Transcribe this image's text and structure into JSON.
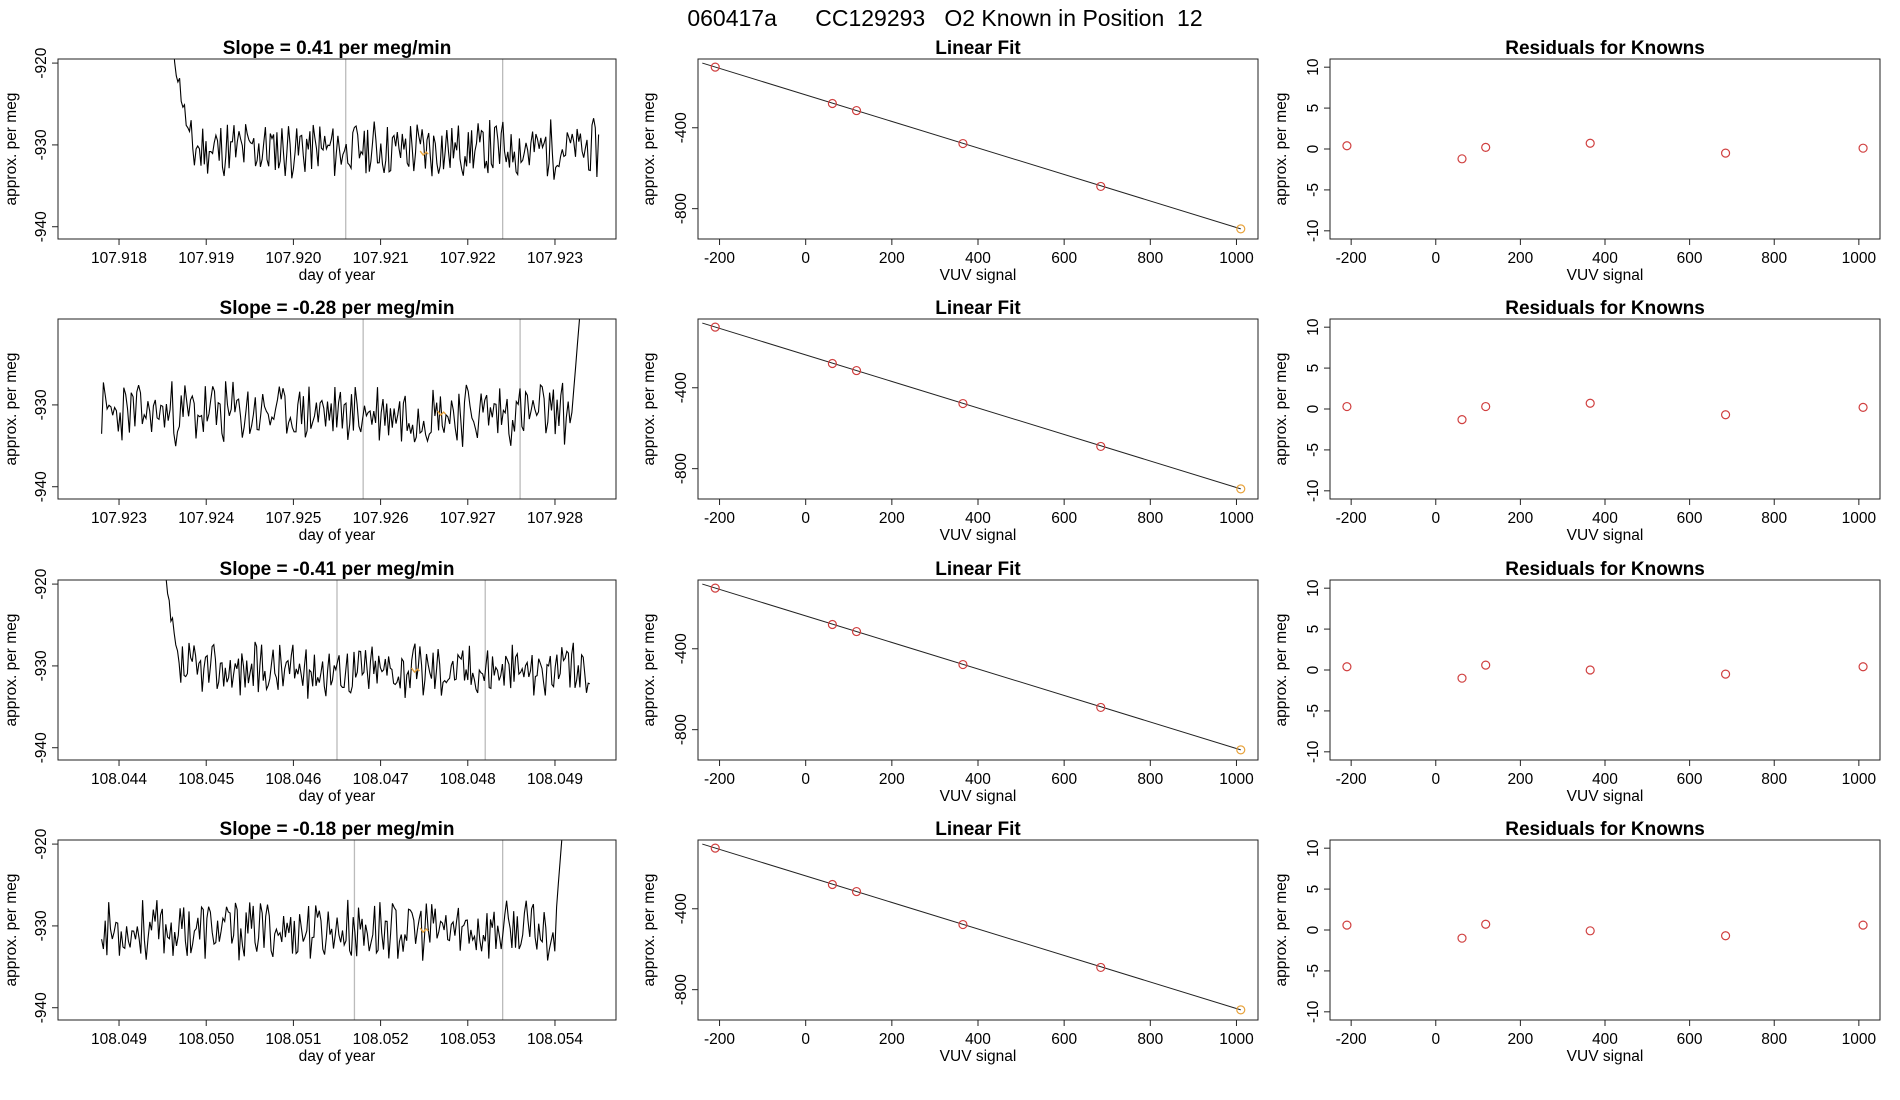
{
  "page_title": "060417a      CC129293   O2 Known in Position  12",
  "chart_data": [
    {
      "type": "line",
      "title": "Slope =  0.41  per meg/min",
      "xlabel": "day of year",
      "ylabel": "approx. per meg",
      "xlim": [
        107.9173,
        107.9237
      ],
      "ylim": [
        -941.5,
        -919.5
      ],
      "xticks": [
        107.918,
        107.919,
        107.92,
        107.921,
        107.922,
        107.923
      ],
      "xtick_labels": [
        "107.918",
        "107.919",
        "107.920",
        "107.921",
        "107.922",
        "107.923"
      ],
      "yticks": [
        -920,
        -930,
        -940
      ],
      "ytick_labels": [
        "-920",
        "-930",
        "-940"
      ],
      "vlines": [
        107.9206,
        107.9224
      ],
      "series_start": 107.9186,
      "series_end": 107.9235,
      "start_value": -917,
      "settle_index": 12,
      "settled_mean": -930.5,
      "settled_amp": 3.0,
      "seed": 11,
      "highlight": {
        "x": 107.9215,
        "y": -931,
        "color": "#e8a33d"
      },
      "line_color": "#000000",
      "vline_color": "#bbbbbb"
    },
    {
      "type": "scatter",
      "title": "Linear Fit",
      "xlabel": "VUV signal",
      "ylabel": "approx. per meg",
      "xlim": [
        -250,
        1050
      ],
      "ylim": [
        -950,
        -60
      ],
      "xticks": [
        -200,
        0,
        200,
        400,
        600,
        800,
        1000
      ],
      "xtick_labels": [
        "-200",
        "0",
        "200",
        "400",
        "600",
        "800",
        "1000"
      ],
      "yticks": [
        -400,
        -800
      ],
      "ytick_labels": [
        "-400",
        "-800"
      ],
      "x": [
        -210,
        62,
        118,
        365,
        685,
        1010
      ],
      "y": [
        -100,
        -280,
        -315,
        -478,
        -690,
        -900
      ],
      "point_colors": [
        "#d04040",
        "#d04040",
        "#d04040",
        "#d04040",
        "#d04040",
        "#e8a33d"
      ],
      "fit_line": {
        "x": [
          -240,
          1010
        ],
        "y": [
          -80,
          -900
        ]
      }
    },
    {
      "type": "scatter",
      "title": "Residuals for Knowns",
      "xlabel": "VUV signal",
      "ylabel": "approx. per meg",
      "xlim": [
        -250,
        1050
      ],
      "ylim": [
        -11,
        11
      ],
      "xticks": [
        -200,
        0,
        200,
        400,
        600,
        800,
        1000
      ],
      "xtick_labels": [
        "-200",
        "0",
        "200",
        "400",
        "600",
        "800",
        "1000"
      ],
      "yticks": [
        10,
        5,
        0,
        -5,
        -10
      ],
      "ytick_labels": [
        "10",
        "5",
        "0",
        "-5",
        "-10"
      ],
      "x": [
        -210,
        62,
        118,
        365,
        685,
        1010
      ],
      "y": [
        0.4,
        -1.2,
        0.2,
        0.7,
        -0.5,
        0.1
      ],
      "point_color": "#d04040"
    },
    {
      "type": "line",
      "title": "Slope =  -0.28  per meg/min",
      "xlabel": "day of year",
      "ylabel": "approx. per meg",
      "xlim": [
        107.9223,
        107.9287
      ],
      "ylim": [
        -941.5,
        -919.5
      ],
      "xticks": [
        107.923,
        107.924,
        107.925,
        107.926,
        107.927,
        107.928
      ],
      "xtick_labels": [
        "107.923",
        "107.924",
        "107.925",
        "107.926",
        "107.927",
        "107.928"
      ],
      "yticks": [
        -930,
        -940
      ],
      "ytick_labels": [
        "-930",
        "-940"
      ],
      "vlines": [
        107.9258,
        107.9276
      ],
      "series_start": 107.9228,
      "series_end": 107.9283,
      "start_value": -932,
      "settle_index": 0,
      "settled_mean": -931,
      "settled_amp": 3.4,
      "seed": 23,
      "end_rise": true,
      "highlight": {
        "x": 107.9267,
        "y": -931,
        "color": "#e8a33d"
      },
      "line_color": "#000000",
      "vline_color": "#bbbbbb"
    },
    {
      "type": "scatter",
      "title": "Linear Fit",
      "xlabel": "VUV signal",
      "ylabel": "approx. per meg",
      "xlim": [
        -250,
        1050
      ],
      "ylim": [
        -950,
        -60
      ],
      "xticks": [
        -200,
        0,
        200,
        400,
        600,
        800,
        1000
      ],
      "xtick_labels": [
        "-200",
        "0",
        "200",
        "400",
        "600",
        "800",
        "1000"
      ],
      "yticks": [
        -400,
        -800
      ],
      "ytick_labels": [
        "-400",
        "-800"
      ],
      "x": [
        -210,
        62,
        118,
        365,
        685,
        1010
      ],
      "y": [
        -100,
        -280,
        -315,
        -478,
        -690,
        -900
      ],
      "point_colors": [
        "#d04040",
        "#d04040",
        "#d04040",
        "#d04040",
        "#d04040",
        "#e8a33d"
      ],
      "fit_line": {
        "x": [
          -240,
          1010
        ],
        "y": [
          -80,
          -900
        ]
      }
    },
    {
      "type": "scatter",
      "title": "Residuals for Knowns",
      "xlabel": "VUV signal",
      "ylabel": "approx. per meg",
      "xlim": [
        -250,
        1050
      ],
      "ylim": [
        -11,
        11
      ],
      "xticks": [
        -200,
        0,
        200,
        400,
        600,
        800,
        1000
      ],
      "xtick_labels": [
        "-200",
        "0",
        "200",
        "400",
        "600",
        "800",
        "1000"
      ],
      "yticks": [
        10,
        5,
        0,
        -5,
        -10
      ],
      "ytick_labels": [
        "10",
        "5",
        "0",
        "-5",
        "-10"
      ],
      "x": [
        -210,
        62,
        118,
        365,
        685,
        1010
      ],
      "y": [
        0.3,
        -1.3,
        0.3,
        0.7,
        -0.7,
        0.2
      ],
      "point_color": "#d04040"
    },
    {
      "type": "line",
      "title": "Slope =  -0.41  per meg/min",
      "xlabel": "day of year",
      "ylabel": "approx. per meg",
      "xlim": [
        108.0433,
        108.0497
      ],
      "ylim": [
        -941.5,
        -919.5
      ],
      "xticks": [
        108.044,
        108.045,
        108.046,
        108.047,
        108.048,
        108.049
      ],
      "xtick_labels": [
        "108.044",
        "108.045",
        "108.046",
        "108.047",
        "108.048",
        "108.049"
      ],
      "yticks": [
        -920,
        -930,
        -940
      ],
      "ytick_labels": [
        "-920",
        "-930",
        "-940"
      ],
      "vlines": [
        108.0465,
        108.0482
      ],
      "series_start": 108.0445,
      "series_end": 108.0494,
      "start_value": -918,
      "settle_index": 10,
      "settled_mean": -930.5,
      "settled_amp": 2.8,
      "seed": 37,
      "highlight": {
        "x": 108.0474,
        "y": -930.5,
        "color": "#e8a33d"
      },
      "line_color": "#000000",
      "vline_color": "#bbbbbb"
    },
    {
      "type": "scatter",
      "title": "Linear Fit",
      "xlabel": "VUV signal",
      "ylabel": "approx. per meg",
      "xlim": [
        -250,
        1050
      ],
      "ylim": [
        -950,
        -60
      ],
      "xticks": [
        -200,
        0,
        200,
        400,
        600,
        800,
        1000
      ],
      "xtick_labels": [
        "-200",
        "0",
        "200",
        "400",
        "600",
        "800",
        "1000"
      ],
      "yticks": [
        -400,
        -800
      ],
      "ytick_labels": [
        "-400",
        "-800"
      ],
      "x": [
        -210,
        62,
        118,
        365,
        685,
        1010
      ],
      "y": [
        -100,
        -280,
        -315,
        -478,
        -690,
        -900
      ],
      "point_colors": [
        "#d04040",
        "#d04040",
        "#d04040",
        "#d04040",
        "#d04040",
        "#e8a33d"
      ],
      "fit_line": {
        "x": [
          -240,
          1010
        ],
        "y": [
          -80,
          -900
        ]
      }
    },
    {
      "type": "scatter",
      "title": "Residuals for Knowns",
      "xlabel": "VUV signal",
      "ylabel": "approx. per meg",
      "xlim": [
        -250,
        1050
      ],
      "ylim": [
        -11,
        11
      ],
      "xticks": [
        -200,
        0,
        200,
        400,
        600,
        800,
        1000
      ],
      "xtick_labels": [
        "-200",
        "0",
        "200",
        "400",
        "600",
        "800",
        "1000"
      ],
      "yticks": [
        10,
        5,
        0,
        -5,
        -10
      ],
      "ytick_labels": [
        "10",
        "5",
        "0",
        "-5",
        "-10"
      ],
      "x": [
        -210,
        62,
        118,
        365,
        685,
        1010
      ],
      "y": [
        0.4,
        -1.0,
        0.6,
        0.0,
        -0.5,
        0.4
      ],
      "point_color": "#d04040"
    },
    {
      "type": "line",
      "title": "Slope =  -0.18  per meg/min",
      "xlabel": "day of year",
      "ylabel": "approx. per meg",
      "xlim": [
        108.0483,
        108.0547
      ],
      "ylim": [
        -941.5,
        -919.5
      ],
      "xticks": [
        108.049,
        108.05,
        108.051,
        108.052,
        108.053,
        108.054
      ],
      "xtick_labels": [
        "108.049",
        "108.050",
        "108.051",
        "108.052",
        "108.053",
        "108.054"
      ],
      "yticks": [
        -920,
        -930,
        -940
      ],
      "ytick_labels": [
        "-920",
        "-930",
        "-940"
      ],
      "vlines": [
        108.0517,
        108.0534
      ],
      "series_start": 108.0488,
      "series_end": 108.0541,
      "start_value": -930,
      "settle_index": 0,
      "settled_mean": -930.5,
      "settled_amp": 3.2,
      "seed": 53,
      "end_rise": true,
      "highlight": {
        "x": 108.0525,
        "y": -930.5,
        "color": "#e8a33d"
      },
      "line_color": "#000000",
      "vline_color": "#bbbbbb"
    },
    {
      "type": "scatter",
      "title": "Linear Fit",
      "xlabel": "VUV signal",
      "ylabel": "approx. per meg",
      "xlim": [
        -250,
        1050
      ],
      "ylim": [
        -950,
        -60
      ],
      "xticks": [
        -200,
        0,
        200,
        400,
        600,
        800,
        1000
      ],
      "xtick_labels": [
        "-200",
        "0",
        "200",
        "400",
        "600",
        "800",
        "1000"
      ],
      "yticks": [
        -400,
        -800
      ],
      "ytick_labels": [
        "-400",
        "-800"
      ],
      "x": [
        -210,
        62,
        118,
        365,
        685,
        1010
      ],
      "y": [
        -100,
        -280,
        -315,
        -478,
        -690,
        -900
      ],
      "point_colors": [
        "#d04040",
        "#d04040",
        "#d04040",
        "#d04040",
        "#d04040",
        "#e8a33d"
      ],
      "fit_line": {
        "x": [
          -240,
          1010
        ],
        "y": [
          -80,
          -900
        ]
      }
    },
    {
      "type": "scatter",
      "title": "Residuals for Knowns",
      "xlabel": "VUV signal",
      "ylabel": "approx. per meg",
      "xlim": [
        -250,
        1050
      ],
      "ylim": [
        -11,
        11
      ],
      "xticks": [
        -200,
        0,
        200,
        400,
        600,
        800,
        1000
      ],
      "xtick_labels": [
        "-200",
        "0",
        "200",
        "400",
        "600",
        "800",
        "1000"
      ],
      "yticks": [
        10,
        5,
        0,
        -5,
        -10
      ],
      "ytick_labels": [
        "10",
        "5",
        "0",
        "-5",
        "-10"
      ],
      "x": [
        -210,
        62,
        118,
        365,
        685,
        1010
      ],
      "y": [
        0.6,
        -1.0,
        0.7,
        -0.1,
        -0.7,
        0.6
      ],
      "point_color": "#d04040"
    }
  ]
}
